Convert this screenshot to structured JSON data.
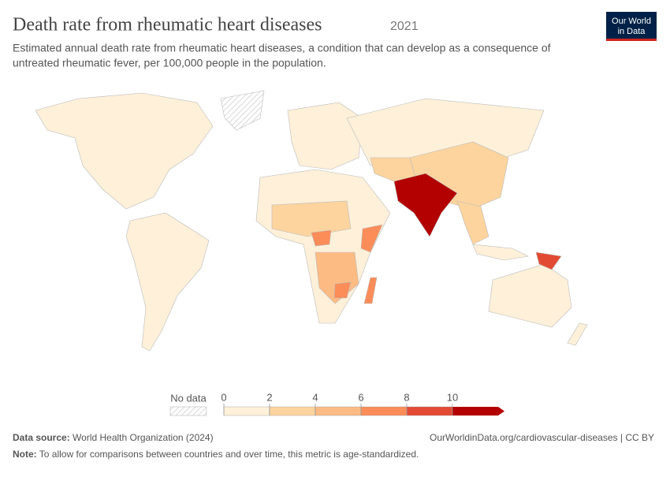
{
  "header": {
    "title": "Death rate from rheumatic heart diseases",
    "year": "2021",
    "subtitle_lines": [
      "Estimated annual death rate from rheumatic heart diseases, a condition that can develop as a consequence of",
      "untreated rheumatic fever, per 100,000 people in the population."
    ],
    "logo": [
      "Our World",
      "in Data"
    ]
  },
  "legend": {
    "no_data": "No data",
    "ticks": [
      0,
      2,
      4,
      6,
      8,
      10
    ],
    "colors": [
      "#fef0d9",
      "#fdd49e",
      "#fdbb84",
      "#fc8d59",
      "#e34a33",
      "#b30000"
    ]
  },
  "footer": {
    "source_label": "Data source:",
    "source": "World Health Organization (2024)",
    "url": "OurWorldinData.org/cardiovascular-diseases | CC BY",
    "note_label": "Note:",
    "note": "To allow for comparisons between countries and over time, this metric is age-standardized."
  }
}
